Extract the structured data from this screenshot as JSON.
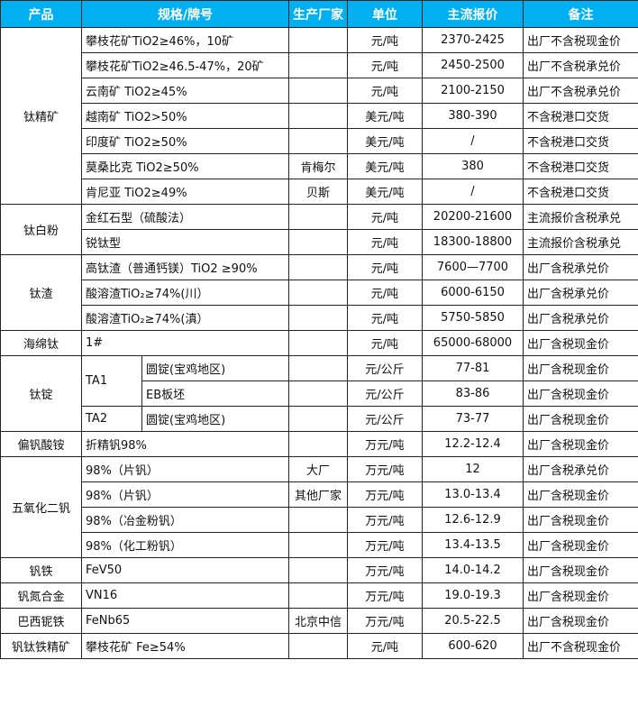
{
  "headers": [
    "产品",
    "规格/牌号",
    "生产厂家",
    "单位",
    "主流报价",
    "备注"
  ],
  "header_color": "#00B0F0",
  "groups": [
    {
      "product": "钛精矿",
      "rows": [
        {
          "spec": "攀枝花矿TiO2≥46%，10矿",
          "factory": "",
          "unit": "元/吨",
          "price": "2370-2425",
          "note": "出厂不含税现金价"
        },
        {
          "spec": "攀枝花矿TiO2≥46.5-47%，20矿",
          "factory": "",
          "unit": "元/吨",
          "price": "2450-2500",
          "note": "出厂不含税承兑价"
        },
        {
          "spec": "云南矿 TiO2≥45%",
          "factory": "",
          "unit": "元/吨",
          "price": "2100-2150",
          "note": "出厂不含税承兑价"
        },
        {
          "spec": "越南矿 TiO2>50%",
          "factory": "",
          "unit": "美元/吨",
          "price": "380-390",
          "note": "不含税港口交货"
        },
        {
          "spec": "印度矿 TiO2≥50%",
          "factory": "",
          "unit": "美元/吨",
          "price": "/",
          "note": "不含税港口交货"
        },
        {
          "spec": "莫桑比克 TiO2≥50%",
          "factory": "肯梅尔",
          "unit": "美元/吨",
          "price": "380",
          "note": "不含税港口交货"
        },
        {
          "spec": "肯尼亚 TiO2≥49%",
          "factory": "贝斯",
          "unit": "美元/吨",
          "price": "/",
          "note": "不含税港口交货"
        }
      ]
    },
    {
      "product": "钛白粉",
      "rows": [
        {
          "spec": "金红石型（硫酸法）",
          "factory": "",
          "unit": "元/吨",
          "price": "20200-21600",
          "note": "主流报价含税承兑"
        },
        {
          "spec": "锐钛型",
          "factory": "",
          "unit": "元/吨",
          "price": "18300-18800",
          "note": "主流报价含税承兑"
        }
      ]
    },
    {
      "product": "钛渣",
      "rows": [
        {
          "spec": "高钛渣（普通钙镁）TiO2 ≥90%",
          "factory": "",
          "unit": "元/吨",
          "price": "7600—7700",
          "note": "出厂含税承兑价"
        },
        {
          "spec": "酸溶渣TiO₂≥74%(川）",
          "factory": "",
          "unit": "元/吨",
          "price": "6000-6150",
          "note": "出厂含税承兑价"
        },
        {
          "spec": "酸溶渣TiO₂≥74%(滇）",
          "factory": "",
          "unit": "元/吨",
          "price": "5750-5850",
          "note": "出厂含税承兑价"
        }
      ]
    },
    {
      "product": "海绵钛",
      "rows": [
        {
          "spec": "1#",
          "factory": "",
          "unit": "元/吨",
          "price": "65000-68000",
          "note": "出厂含税现金价"
        }
      ]
    },
    {
      "product": "钛锭",
      "subgroups": [
        {
          "grade": "TA1",
          "rows": [
            {
              "spec": "圆锭(宝鸡地区)",
              "factory": "",
              "unit": "元/公斤",
              "price": "77-81",
              "note": "出厂含税现金价"
            },
            {
              "spec": "EB板坯",
              "factory": "",
              "unit": "元/公斤",
              "price": "83-86",
              "note": "出厂含税现金价"
            }
          ]
        },
        {
          "grade": "TA2",
          "rows": [
            {
              "spec": "圆锭(宝鸡地区)",
              "factory": "",
              "unit": "元/公斤",
              "price": "73-77",
              "note": "出厂含税现金价"
            }
          ]
        }
      ]
    },
    {
      "product": "偏钒酸铵",
      "rows": [
        {
          "spec": "折精钒98%",
          "factory": "",
          "unit": "万元/吨",
          "price": "12.2-12.4",
          "note": "出厂含税现金价"
        }
      ]
    },
    {
      "product": "五氧化二钒",
      "rows": [
        {
          "spec": "98%（片钒）",
          "factory": "大厂",
          "unit": "万元/吨",
          "price": "12",
          "note": "出厂含税承兑价"
        },
        {
          "spec": "98%（片钒）",
          "factory": "其他厂家",
          "unit": "万元/吨",
          "price": "13.0-13.4",
          "note": "出厂含税现金价"
        },
        {
          "spec": "98%（冶金粉钒）",
          "factory": "",
          "unit": "万元/吨",
          "price": "12.6-12.9",
          "note": "出厂含税现金价"
        },
        {
          "spec": "98%（化工粉钒）",
          "factory": "",
          "unit": "万元/吨",
          "price": "13.4-13.5",
          "note": "出厂含税现金价"
        }
      ]
    },
    {
      "product": "钒铁",
      "rows": [
        {
          "spec": "FeV50",
          "factory": "",
          "unit": "万元/吨",
          "price": "14.0-14.2",
          "note": "出厂含税现金价"
        }
      ]
    },
    {
      "product": "钒氮合金",
      "rows": [
        {
          "spec": "VN16",
          "factory": "",
          "unit": "万元/吨",
          "price": "19.0-19.3",
          "note": "出厂含税现金价"
        }
      ]
    },
    {
      "product": "巴西铌铁",
      "rows": [
        {
          "spec": "FeNb65",
          "factory": "北京中信",
          "unit": "万元/吨",
          "price": "20.5-22.5",
          "note": "出厂含税现金价"
        }
      ]
    },
    {
      "product": "钒钛铁精矿",
      "rows": [
        {
          "spec": "攀枝花矿 Fe≥54%",
          "factory": "",
          "unit": "元/吨",
          "price": "600-620",
          "note": "出厂不含税现金价"
        }
      ]
    }
  ]
}
